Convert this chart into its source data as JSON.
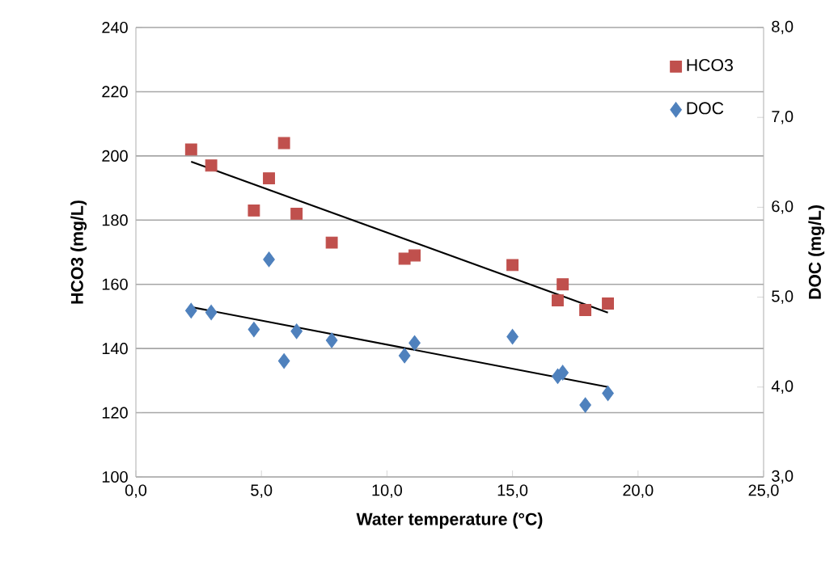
{
  "chart_data": {
    "type": "scatter",
    "xlabel": "Water temperature (°C)",
    "ylabel": "HCO3 (mg/L)",
    "y2label": "DOC (mg/L)",
    "xlim": [
      0,
      25
    ],
    "xticks": [
      {
        "value": 0,
        "label": "0,0"
      },
      {
        "value": 5,
        "label": "5,0"
      },
      {
        "value": 10,
        "label": "10,0"
      },
      {
        "value": 15,
        "label": "15,0"
      },
      {
        "value": 20,
        "label": "20,0"
      },
      {
        "value": 25,
        "label": "25,0"
      }
    ],
    "ylim": [
      100,
      240
    ],
    "yticks": [
      100,
      120,
      140,
      160,
      180,
      200,
      220,
      240
    ],
    "y2lim": [
      3,
      8
    ],
    "y2ticks": [
      {
        "value": 3,
        "label": "3,0"
      },
      {
        "value": 4,
        "label": "4,0"
      },
      {
        "value": 5,
        "label": "5,0"
      },
      {
        "value": 6,
        "label": "6,0"
      },
      {
        "value": 7,
        "label": "7,0"
      },
      {
        "value": 8,
        "label": "8,0"
      }
    ],
    "grid": "y",
    "legend": "top right",
    "series": [
      {
        "name": "HCO3",
        "color": "#c0504d",
        "marker": "square",
        "x": [
          2.2,
          3.0,
          4.7,
          5.3,
          5.9,
          6.4,
          7.8,
          10.7,
          11.1,
          15.0,
          17.0,
          16.8,
          17.9,
          18.8
        ],
        "values": [
          202,
          197,
          183,
          193,
          204,
          182,
          173,
          168,
          169,
          166,
          160,
          155,
          152,
          154
        ]
      },
      {
        "name": "DOC",
        "color": "#4f81bd",
        "marker": "diamond",
        "axis": "y2",
        "x": [
          2.2,
          3.0,
          4.7,
          5.3,
          5.9,
          6.4,
          7.8,
          10.7,
          11.1,
          15.0,
          16.8,
          17.0,
          17.9,
          18.8
        ],
        "values": [
          4.85,
          4.83,
          4.64,
          5.42,
          4.29,
          4.62,
          4.52,
          4.35,
          4.49,
          4.56,
          4.12,
          4.16,
          3.8,
          3.93
        ]
      },
      {
        "type": "line",
        "color": "#000000",
        "marker": "none",
        "x": [
          2.2,
          18.8
        ],
        "values": [
          198.2,
          151.2
        ]
      },
      {
        "type": "line",
        "color": "#000000",
        "marker": "none",
        "axis": "y2",
        "x": [
          2.2,
          18.8
        ],
        "values": [
          4.89,
          4.0
        ]
      }
    ]
  }
}
